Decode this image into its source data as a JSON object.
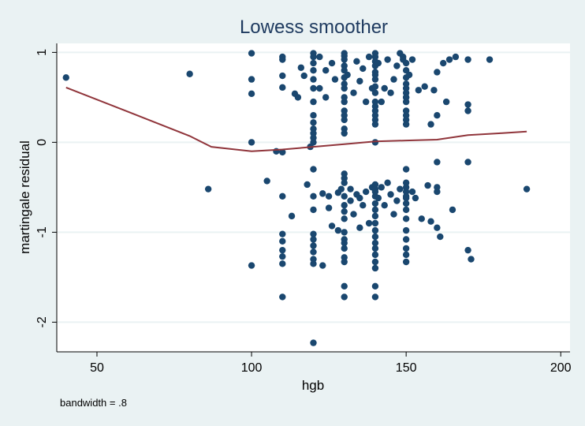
{
  "chart_data": {
    "type": "scatter",
    "title": "Lowess smoother",
    "xlabel": "hgb",
    "ylabel": "martingale residual",
    "note": "bandwidth = .8",
    "xlim": [
      37,
      203
    ],
    "ylim": [
      -2.33,
      1.1
    ],
    "xticks": [
      50,
      100,
      150,
      200
    ],
    "yticks": [
      -2,
      -1,
      0,
      1
    ],
    "grid": true,
    "legend": "none",
    "colors": {
      "background": "#eaf2f3",
      "plot_area": "#ffffff",
      "points": "#1a476f",
      "smoother": "#90353b",
      "grid": "#eaf2f3",
      "title": "#1e3a5f"
    },
    "smoother": {
      "name": "lowess",
      "x": [
        40,
        60,
        80,
        87,
        100,
        110,
        120,
        130,
        140,
        150,
        160,
        170,
        180,
        189
      ],
      "y": [
        0.61,
        0.34,
        0.07,
        -0.05,
        -0.1,
        -0.08,
        -0.05,
        -0.02,
        0.01,
        0.02,
        0.03,
        0.08,
        0.1,
        0.12
      ]
    },
    "scatter": {
      "name": "martingale residual",
      "x": [
        40,
        80,
        86,
        100,
        100,
        100,
        100,
        100,
        105,
        108,
        110,
        110,
        110,
        110,
        110,
        110,
        110,
        110,
        110,
        110,
        110,
        110,
        113,
        114,
        115,
        116,
        117,
        118,
        119,
        120,
        120,
        120,
        120,
        120,
        120,
        120,
        120,
        120,
        120,
        120,
        120,
        120,
        120,
        120,
        120,
        120,
        120,
        120,
        120,
        120,
        120,
        120,
        122,
        122,
        123,
        123,
        124,
        124,
        125,
        125,
        126,
        126,
        127,
        128,
        128,
        129,
        130,
        130,
        130,
        130,
        130,
        130,
        130,
        130,
        130,
        130,
        130,
        130,
        130,
        130,
        130,
        130,
        130,
        130,
        130,
        130,
        130,
        130,
        130,
        130,
        130,
        130,
        130,
        130,
        130,
        130,
        131,
        132,
        132,
        133,
        133,
        134,
        134,
        135,
        135,
        135,
        136,
        136,
        137,
        137,
        138,
        138,
        139,
        139,
        140,
        140,
        140,
        140,
        140,
        140,
        140,
        140,
        140,
        140,
        140,
        140,
        140,
        140,
        140,
        140,
        140,
        140,
        140,
        140,
        140,
        140,
        140,
        140,
        140,
        140,
        140,
        140,
        140,
        140,
        140,
        140,
        140,
        141,
        141,
        142,
        142,
        143,
        143,
        144,
        144,
        145,
        145,
        146,
        146,
        147,
        147,
        148,
        148,
        149,
        149,
        150,
        150,
        150,
        150,
        150,
        150,
        150,
        150,
        150,
        150,
        150,
        150,
        150,
        150,
        150,
        150,
        150,
        150,
        150,
        150,
        150,
        150,
        150,
        150,
        150,
        150,
        150,
        151,
        152,
        152,
        153,
        154,
        155,
        156,
        157,
        158,
        158,
        159,
        160,
        160,
        160,
        160,
        160,
        160,
        161,
        162,
        163,
        164,
        165,
        166,
        170,
        170,
        170,
        170,
        170,
        171,
        177,
        189
      ],
      "y": [
        0.72,
        0.76,
        -0.52,
        0.99,
        0.7,
        0.54,
        0.0,
        -1.37,
        -0.43,
        -0.1,
        0.95,
        0.92,
        0.74,
        0.61,
        -0.6,
        -1.02,
        -1.1,
        -1.2,
        -1.27,
        -1.35,
        -1.72,
        -0.11,
        -0.82,
        0.54,
        0.5,
        0.83,
        0.74,
        -0.47,
        -0.05,
        0.99,
        0.95,
        0.88,
        0.8,
        0.7,
        0.6,
        0.45,
        0.3,
        0.22,
        0.15,
        0.1,
        0.05,
        -0.3,
        -0.6,
        -0.75,
        -1.02,
        -1.08,
        -1.15,
        -1.22,
        -1.3,
        -1.35,
        -2.23,
        0.0,
        0.95,
        0.6,
        -0.57,
        -1.37,
        0.8,
        0.5,
        -0.73,
        -0.6,
        0.88,
        -0.93,
        0.7,
        -0.56,
        -0.98,
        -0.52,
        0.99,
        0.96,
        0.92,
        0.85,
        0.8,
        0.72,
        0.65,
        0.6,
        0.5,
        0.45,
        0.35,
        0.3,
        0.25,
        0.15,
        0.1,
        -0.35,
        -0.4,
        -0.45,
        -0.6,
        -0.7,
        -0.77,
        -0.85,
        -1.0,
        -1.08,
        -1.12,
        -1.18,
        -1.28,
        -1.33,
        -1.6,
        -1.72,
        0.75,
        -0.52,
        -0.65,
        0.55,
        -0.8,
        0.9,
        -0.58,
        0.68,
        -0.62,
        -0.95,
        0.82,
        -0.7,
        0.45,
        -0.55,
        0.95,
        -0.9,
        0.6,
        -0.5,
        0.99,
        0.95,
        0.9,
        0.85,
        0.78,
        0.7,
        0.62,
        0.55,
        0.45,
        0.4,
        0.35,
        0.3,
        0.25,
        0.2,
        -0.47,
        -0.52,
        -0.6,
        -0.68,
        -0.75,
        -0.82,
        -0.9,
        -0.98,
        -1.05,
        -1.12,
        -1.18,
        -1.25,
        -1.33,
        -1.4,
        -1.6,
        -1.72,
        0.0,
        -0.55,
        0.75,
        -0.62,
        0.88,
        -0.5,
        0.45,
        -0.7,
        0.6,
        -0.45,
        0.92,
        -0.58,
        0.55,
        -0.8,
        0.7,
        -0.65,
        0.85,
        -0.52,
        0.99,
        0.95,
        0.92,
        0.88,
        0.8,
        0.72,
        0.65,
        0.6,
        0.55,
        0.5,
        0.45,
        0.35,
        0.3,
        0.25,
        0.2,
        -0.3,
        -0.45,
        -0.5,
        -0.55,
        -0.62,
        -0.68,
        -0.75,
        -0.85,
        -0.98,
        -1.08,
        -1.18,
        -1.25,
        -1.33,
        0.5,
        -0.6,
        0.75,
        -0.55,
        0.92,
        -0.62,
        0.58,
        -0.85,
        0.62,
        -0.48,
        0.2,
        -0.88,
        0.58,
        0.3,
        -0.22,
        -0.5,
        -0.55,
        -0.95,
        0.78,
        -1.05,
        0.88,
        0.45,
        0.92,
        -0.75,
        0.95,
        0.42,
        0.35,
        -0.22,
        -1.2,
        0.92,
        -1.3,
        0.92,
        -0.52
      ]
    }
  }
}
